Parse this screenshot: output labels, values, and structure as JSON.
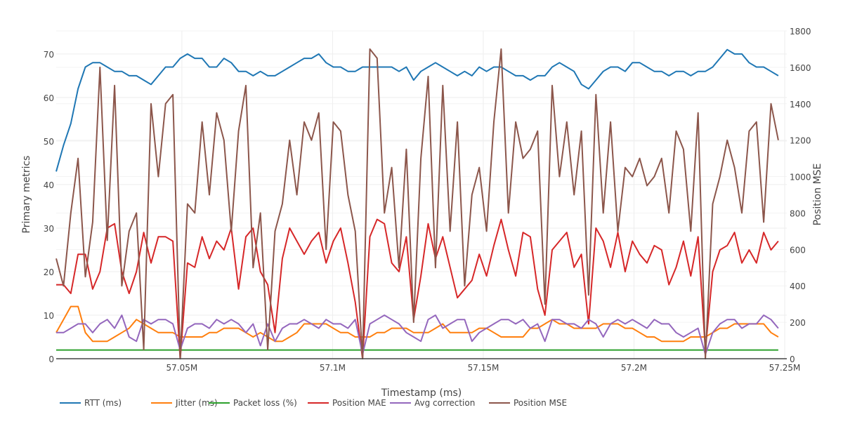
{
  "chart_data": {
    "type": "line",
    "title": "",
    "xlabel": "Timestamp (ms)",
    "ylabel": "Primary metrics",
    "y2label": "Position MSE",
    "xlim": [
      57008300,
      57250700
    ],
    "ylim": [
      0,
      75.3
    ],
    "y2lim": [
      0,
      1800
    ],
    "xticks": [
      57050000,
      57100000,
      57150000,
      57200000,
      57250000
    ],
    "xtick_labels": [
      "57.05M",
      "57.1M",
      "57.15M",
      "57.2M",
      "57.25M"
    ],
    "yticks": [
      0,
      10,
      20,
      30,
      40,
      50,
      60,
      70
    ],
    "y2ticks": [
      0,
      200,
      400,
      600,
      800,
      1000,
      1200,
      1400,
      1600,
      1800
    ],
    "grid": true,
    "legend_placement": "bottom-left",
    "x": [
      57008300,
      57010720,
      57013140,
      57015560,
      57017980,
      57020400,
      57022820,
      57025240,
      57027660,
      57030080,
      57032500,
      57034920,
      57037340,
      57039760,
      57042180,
      57044600,
      57047020,
      57049440,
      57051860,
      57054280,
      57056700,
      57059120,
      57061540,
      57063960,
      57066380,
      57068800,
      57071220,
      57073640,
      57076060,
      57078480,
      57080900,
      57083320,
      57085740,
      57088160,
      57090580,
      57093000,
      57095420,
      57097840,
      57100260,
      57102680,
      57105100,
      57107520,
      57109940,
      57112360,
      57114780,
      57117200,
      57119620,
      57122040,
      57124460,
      57126880,
      57129300,
      57131720,
      57134140,
      57136560,
      57138980,
      57141400,
      57143820,
      57146240,
      57148660,
      57151080,
      57153500,
      57155920,
      57158340,
      57160760,
      57163180,
      57165600,
      57168020,
      57170440,
      57172860,
      57175280,
      57177700,
      57180120,
      57182540,
      57184960,
      57187380,
      57189800,
      57192220,
      57194640,
      57197060,
      57199480,
      57201900,
      57204320,
      57206740,
      57209160,
      57211580,
      57214000,
      57216420,
      57218840,
      57221260,
      57223680,
      57226100,
      57228520,
      57230940,
      57233360,
      57235780,
      57238200,
      57240620,
      57243040,
      57245460,
      57247880
    ],
    "series": [
      {
        "name": "RTT (ms)",
        "color": "#1f77b4",
        "axis": "y",
        "values": [
          43,
          49,
          54,
          62,
          67,
          68,
          68,
          67,
          66,
          66,
          65,
          65,
          64,
          63,
          65,
          67,
          67,
          69,
          70,
          69,
          69,
          67,
          67,
          69,
          68,
          66,
          66,
          65,
          66,
          65,
          65,
          66,
          67,
          68,
          69,
          69,
          70,
          68,
          67,
          67,
          66,
          66,
          67,
          67,
          67,
          67,
          67,
          66,
          67,
          64,
          66,
          67,
          68,
          67,
          66,
          65,
          66,
          65,
          67,
          66,
          67,
          67,
          66,
          65,
          65,
          64,
          65,
          65,
          67,
          68,
          67,
          66,
          63,
          62,
          64,
          66,
          67,
          67,
          66,
          68,
          68,
          67,
          66,
          66,
          65,
          66,
          66,
          65,
          66,
          66,
          67,
          69,
          71,
          70,
          70,
          68,
          67,
          67,
          66,
          65
        ]
      },
      {
        "name": "Jitter (ms)",
        "color": "#ff7f0e",
        "axis": "y",
        "values": [
          6,
          9,
          12,
          12,
          6,
          4,
          4,
          4,
          5,
          6,
          7,
          9,
          8,
          7,
          6,
          6,
          6,
          5,
          5,
          5,
          5,
          6,
          6,
          7,
          7,
          7,
          6,
          5,
          6,
          5,
          4,
          4,
          5,
          6,
          8,
          8,
          8,
          8,
          7,
          6,
          6,
          5,
          5,
          5,
          6,
          6,
          7,
          7,
          7,
          6,
          6,
          6,
          7,
          8,
          6,
          6,
          6,
          6,
          7,
          7,
          6,
          5,
          5,
          5,
          5,
          7,
          7,
          8,
          9,
          8,
          8,
          7,
          7,
          7,
          7,
          8,
          8,
          8,
          7,
          7,
          6,
          5,
          5,
          4,
          4,
          4,
          4,
          5,
          5,
          5,
          6,
          7,
          7,
          8,
          8,
          8,
          8,
          8,
          6,
          5
        ]
      },
      {
        "name": "Packet loss (%)",
        "color": "#2ca02c",
        "axis": "y",
        "values": [
          2,
          2,
          2,
          2,
          2,
          2,
          2,
          2,
          2,
          2,
          2,
          2,
          2,
          2,
          2,
          2,
          2,
          2,
          2,
          2,
          2,
          2,
          2,
          2,
          2,
          2,
          2,
          2,
          2,
          2,
          2,
          2,
          2,
          2,
          2,
          2,
          2,
          2,
          2,
          2,
          2,
          2,
          2,
          2,
          2,
          2,
          2,
          2,
          2,
          2,
          2,
          2,
          2,
          2,
          2,
          2,
          2,
          2,
          2,
          2,
          2,
          2,
          2,
          2,
          2,
          2,
          2,
          2,
          2,
          2,
          2,
          2,
          2,
          2,
          2,
          2,
          2,
          2,
          2,
          2,
          2,
          2,
          2,
          2,
          2,
          2,
          2,
          2,
          2,
          2,
          2,
          2,
          2,
          2,
          2,
          2,
          2,
          2,
          2,
          2
        ]
      },
      {
        "name": "Position MAE",
        "color": "#d62728",
        "axis": "y",
        "values": [
          17,
          17,
          15,
          24,
          24,
          16,
          20,
          30,
          31,
          20,
          15,
          20,
          29,
          22,
          28,
          28,
          27,
          0,
          22,
          21,
          28,
          23,
          27,
          25,
          30,
          16,
          28,
          30,
          20,
          17,
          6,
          23,
          30,
          27,
          24,
          27,
          29,
          22,
          27,
          30,
          22,
          13,
          0,
          28,
          32,
          31,
          22,
          20,
          28,
          9,
          19,
          31,
          23,
          28,
          21,
          14,
          16,
          18,
          24,
          19,
          26,
          32,
          25,
          19,
          29,
          28,
          16,
          10,
          25,
          27,
          29,
          21,
          24,
          8,
          30,
          27,
          21,
          29,
          20,
          27,
          24,
          22,
          26,
          25,
          17,
          21,
          27,
          19,
          28,
          2,
          20,
          25,
          26,
          29,
          22,
          25,
          22,
          29,
          25,
          27
        ]
      },
      {
        "name": "Avg correction",
        "color": "#9467bd",
        "axis": "y",
        "values": [
          6,
          6,
          7,
          8,
          8,
          6,
          8,
          9,
          7,
          10,
          5,
          4,
          9,
          8,
          9,
          9,
          8,
          2,
          7,
          8,
          8,
          7,
          9,
          8,
          9,
          8,
          6,
          8,
          3,
          8,
          4,
          7,
          8,
          8,
          9,
          8,
          7,
          9,
          8,
          8,
          7,
          9,
          1,
          8,
          9,
          10,
          9,
          8,
          6,
          5,
          4,
          9,
          10,
          7,
          8,
          9,
          9,
          4,
          6,
          7,
          8,
          9,
          9,
          8,
          9,
          7,
          8,
          4,
          9,
          9,
          8,
          8,
          7,
          9,
          8,
          5,
          8,
          9,
          8,
          9,
          8,
          7,
          9,
          8,
          8,
          6,
          5,
          6,
          7,
          1,
          6,
          8,
          9,
          9,
          7,
          8,
          8,
          10,
          9,
          7
        ]
      },
      {
        "name": "Position MSE",
        "color": "#8c564b",
        "axis": "y2",
        "values": [
          550,
          400,
          800,
          1100,
          450,
          750,
          1600,
          650,
          1500,
          400,
          700,
          800,
          50,
          1400,
          1000,
          1400,
          1450,
          0,
          850,
          800,
          1300,
          900,
          1350,
          1200,
          700,
          1250,
          1500,
          500,
          800,
          50,
          700,
          850,
          1200,
          900,
          1300,
          1200,
          1350,
          600,
          1300,
          1250,
          900,
          700,
          0,
          1700,
          1650,
          800,
          1050,
          500,
          1150,
          200,
          1100,
          1550,
          500,
          1500,
          700,
          1300,
          400,
          900,
          1050,
          700,
          1300,
          1700,
          800,
          1300,
          1100,
          1150,
          1250,
          300,
          1500,
          1000,
          1300,
          900,
          1250,
          350,
          1450,
          800,
          1300,
          700,
          1050,
          1000,
          1100,
          950,
          1000,
          1100,
          800,
          1250,
          1150,
          700,
          1350,
          0,
          850,
          1000,
          1200,
          1050,
          800,
          1250,
          1300,
          750,
          1400,
          1200
        ]
      }
    ]
  }
}
